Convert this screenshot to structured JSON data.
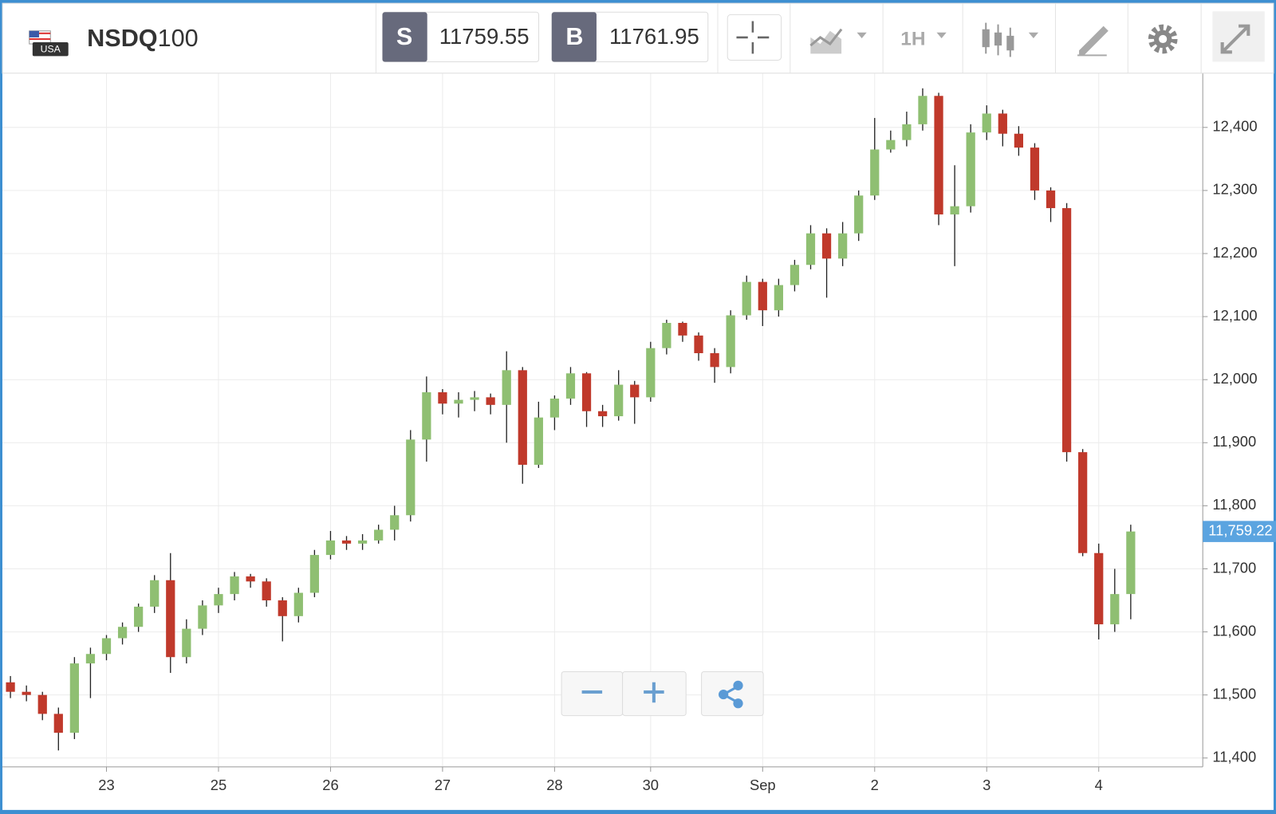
{
  "toolbar": {
    "flag_text": "USA",
    "symbol_main": "NSDQ",
    "symbol_suffix": "100",
    "sell_label": "S",
    "sell_price": "11759.55",
    "buy_label": "B",
    "buy_price": "11761.95",
    "interval": "1H"
  },
  "chart_data": {
    "type": "candlestick",
    "categories": [
      null,
      null,
      null,
      null,
      null,
      null,
      "23",
      null,
      null,
      null,
      null,
      null,
      null,
      "25",
      null,
      null,
      null,
      null,
      null,
      null,
      "26",
      null,
      null,
      null,
      null,
      null,
      null,
      "27",
      null,
      null,
      null,
      null,
      null,
      null,
      "28",
      null,
      null,
      null,
      null,
      null,
      "30",
      null,
      null,
      null,
      null,
      null,
      null,
      "Sep",
      null,
      null,
      null,
      null,
      null,
      null,
      "2",
      null,
      null,
      null,
      null,
      null,
      null,
      "3",
      null,
      null,
      null,
      null,
      null,
      null,
      "4",
      null,
      null,
      null,
      null,
      null,
      null
    ],
    "open": [
      11520,
      11505,
      11500,
      11470,
      11440,
      11550,
      11565,
      11590,
      11608,
      11640,
      11682,
      11560,
      11605,
      11642,
      11660,
      11688,
      11680,
      11650,
      11625,
      11662,
      11722,
      11745,
      11740,
      11745,
      11762,
      11785,
      11905,
      11980,
      11962,
      11968,
      11972,
      11960,
      12015,
      11865,
      11940,
      11970,
      12010,
      11950,
      11942,
      11992,
      11972,
      12050,
      12090,
      12070,
      12042,
      12020,
      12102,
      12155,
      12110,
      12150,
      12182,
      12232,
      12192,
      12232,
      12292,
      12365,
      12380,
      12405,
      12450,
      12262,
      12275,
      12392,
      12422,
      12390,
      12368,
      12300,
      12272,
      11885,
      11725,
      11612,
      11660,
      null,
      null,
      null,
      null
    ],
    "high": [
      11530,
      11515,
      11505,
      11480,
      11560,
      11575,
      11595,
      11615,
      11645,
      11690,
      11725,
      11620,
      11650,
      11670,
      11695,
      11692,
      11685,
      11655,
      11670,
      11730,
      11760,
      11752,
      11755,
      11770,
      11800,
      11920,
      12005,
      11985,
      11980,
      11982,
      11978,
      12045,
      12020,
      11965,
      11975,
      12020,
      12012,
      11960,
      12015,
      11998,
      12060,
      12095,
      12092,
      12075,
      12050,
      12110,
      12165,
      12160,
      12160,
      12190,
      12245,
      12240,
      12250,
      12300,
      12415,
      12395,
      12425,
      12462,
      12455,
      12340,
      12405,
      12435,
      12428,
      12402,
      12375,
      12305,
      12280,
      11890,
      11740,
      11700,
      11770,
      null,
      null,
      null,
      null
    ],
    "low": [
      11495,
      11490,
      11460,
      11412,
      11430,
      11495,
      11555,
      11580,
      11600,
      11630,
      11535,
      11550,
      11595,
      11630,
      11650,
      11670,
      11640,
      11585,
      11615,
      11655,
      11715,
      11730,
      11730,
      11740,
      11745,
      11775,
      11870,
      11945,
      11940,
      11950,
      11945,
      11900,
      11835,
      11860,
      11920,
      11960,
      11925,
      11925,
      11935,
      11930,
      11965,
      12040,
      12060,
      12030,
      11995,
      12010,
      12095,
      12085,
      12100,
      12140,
      12175,
      12130,
      12180,
      12220,
      12285,
      12360,
      12370,
      12395,
      12245,
      12180,
      12265,
      12380,
      12370,
      12355,
      12285,
      12250,
      11870,
      11720,
      11588,
      11600,
      11620,
      null,
      null,
      null,
      null
    ],
    "close": [
      11505,
      11500,
      11470,
      11440,
      11550,
      11565,
      11590,
      11608,
      11640,
      11682,
      11560,
      11605,
      11642,
      11660,
      11688,
      11680,
      11650,
      11625,
      11662,
      11722,
      11745,
      11740,
      11745,
      11762,
      11785,
      11905,
      11980,
      11962,
      11968,
      11972,
      11960,
      12015,
      11865,
      11940,
      11970,
      12010,
      11950,
      11942,
      11992,
      11972,
      12050,
      12090,
      12070,
      12042,
      12020,
      12102,
      12155,
      12110,
      12150,
      12182,
      12232,
      12192,
      12232,
      12292,
      12365,
      12380,
      12405,
      12450,
      12262,
      12275,
      12392,
      12422,
      12390,
      12368,
      12300,
      12272,
      11885,
      11725,
      11612,
      11660,
      11759.22,
      null,
      null,
      null,
      null
    ],
    "last_label": "11,759.22",
    "up_color": "#8fbf72",
    "down_color": "#c0392b",
    "ylim": [
      11386,
      12486
    ],
    "yticks": [
      {
        "value": 11400,
        "label": "11,400"
      },
      {
        "value": 11500,
        "label": "11,500"
      },
      {
        "value": 11600,
        "label": "11,600"
      },
      {
        "value": 11700,
        "label": "11,700"
      },
      {
        "value": 11800,
        "label": "11,800"
      },
      {
        "value": 11900,
        "label": "11,900"
      },
      {
        "value": 12000,
        "label": "12,000"
      },
      {
        "value": 12100,
        "label": "12,100"
      },
      {
        "value": 12200,
        "label": "12,200"
      },
      {
        "value": 12300,
        "label": "12,300"
      },
      {
        "value": 12400,
        "label": "12,400"
      }
    ],
    "grid": true
  }
}
